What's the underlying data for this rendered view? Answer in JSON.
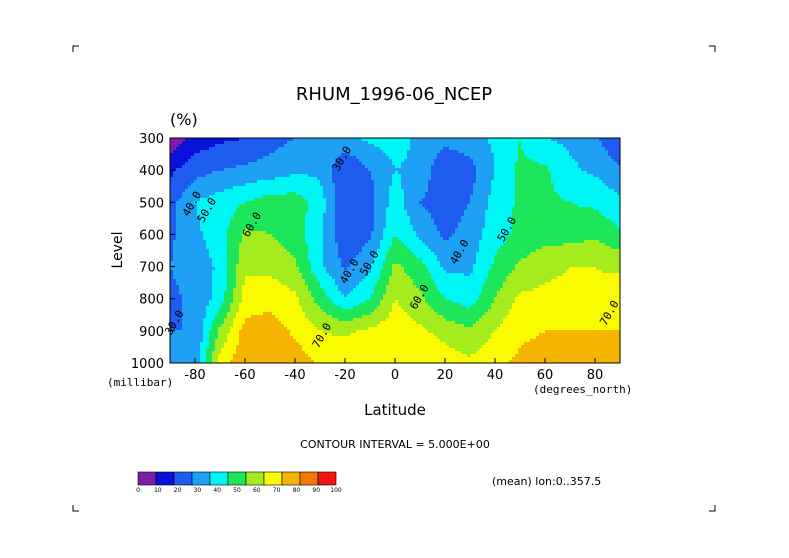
{
  "chart_data": {
    "type": "heatmap",
    "title": "RHUM_1996-06_NCEP",
    "units": "(%)",
    "xlabel": "Latitude",
    "ylabel": "Level",
    "x_units": "(degrees_north)",
    "y_units": "(millibar)",
    "xlim": [
      -90,
      90
    ],
    "ylim": [
      300,
      1000
    ],
    "y_inverted": true,
    "x_ticks": [
      "-80",
      "-60",
      "-40",
      "-20",
      "0",
      "20",
      "40",
      "60",
      "80"
    ],
    "y_ticks": [
      "300",
      "400",
      "500",
      "600",
      "700",
      "800",
      "900",
      "1000"
    ],
    "contour_interval_text": "CONTOUR INTERVAL = 5.000E+00",
    "footnote": "(mean) lon:0..357.5",
    "legend": {
      "levels": [
        "0",
        "10",
        "20",
        "30",
        "40",
        "50",
        "60",
        "70",
        "80",
        "90",
        "100"
      ],
      "colors": [
        "#7b1fa8",
        "#0a10d8",
        "#1e5cf0",
        "#1ea0f5",
        "#00f5f5",
        "#1ee65a",
        "#a5ec1e",
        "#fafa00",
        "#f5b400",
        "#f07800",
        "#f01414"
      ]
    },
    "contour_labels": [
      {
        "text": "30.0",
        "lat": -20,
        "lev": 370
      },
      {
        "text": "40.0",
        "lat": -80,
        "lev": 510
      },
      {
        "text": "50.0",
        "lat": -74,
        "lev": 530
      },
      {
        "text": "60.0",
        "lat": -56,
        "lev": 575
      },
      {
        "text": "40.0",
        "lat": -17,
        "lev": 720
      },
      {
        "text": "50.0",
        "lat": -9,
        "lev": 695
      },
      {
        "text": "60.0",
        "lat": 11,
        "lev": 800
      },
      {
        "text": "70.0",
        "lat": -28,
        "lev": 920
      },
      {
        "text": "30.0",
        "lat": -87,
        "lev": 880
      },
      {
        "text": "40.0",
        "lat": 27,
        "lev": 660
      },
      {
        "text": "50.0",
        "lat": 46,
        "lev": 590
      },
      {
        "text": "70.0",
        "lat": 87,
        "lev": 850
      }
    ],
    "latitudes": [
      -90,
      -80,
      -70,
      -60,
      -50,
      -40,
      -30,
      -20,
      -10,
      0,
      10,
      20,
      30,
      40,
      50,
      60,
      70,
      80,
      90
    ],
    "levels": [
      300,
      400,
      500,
      600,
      700,
      800,
      900,
      1000
    ],
    "values": [
      [
        2,
        14,
        18,
        20,
        26,
        30,
        35,
        38,
        42,
        44,
        38,
        34,
        36,
        42,
        50,
        40,
        38,
        32,
        20
      ],
      [
        18,
        26,
        30,
        32,
        34,
        38,
        38,
        20,
        30,
        40,
        38,
        20,
        26,
        40,
        52,
        52,
        42,
        38,
        32
      ],
      [
        26,
        40,
        45,
        50,
        55,
        55,
        45,
        22,
        26,
        45,
        30,
        24,
        30,
        44,
        52,
        52,
        50,
        48,
        42
      ],
      [
        28,
        38,
        45,
        62,
        60,
        55,
        42,
        22,
        28,
        50,
        38,
        28,
        34,
        46,
        52,
        55,
        56,
        58,
        52
      ],
      [
        30,
        34,
        42,
        68,
        68,
        62,
        42,
        28,
        38,
        62,
        54,
        38,
        38,
        52,
        62,
        68,
        70,
        70,
        68
      ],
      [
        28,
        32,
        44,
        74,
        76,
        72,
        56,
        40,
        50,
        70,
        62,
        50,
        45,
        60,
        72,
        72,
        72,
        72,
        76
      ],
      [
        30,
        30,
        62,
        84,
        86,
        78,
        70,
        68,
        72,
        76,
        72,
        66,
        62,
        70,
        78,
        80,
        80,
        80,
        80
      ],
      [
        30,
        32,
        74,
        88,
        88,
        86,
        78,
        78,
        78,
        80,
        80,
        76,
        72,
        78,
        82,
        84,
        86,
        90,
        90
      ]
    ]
  }
}
